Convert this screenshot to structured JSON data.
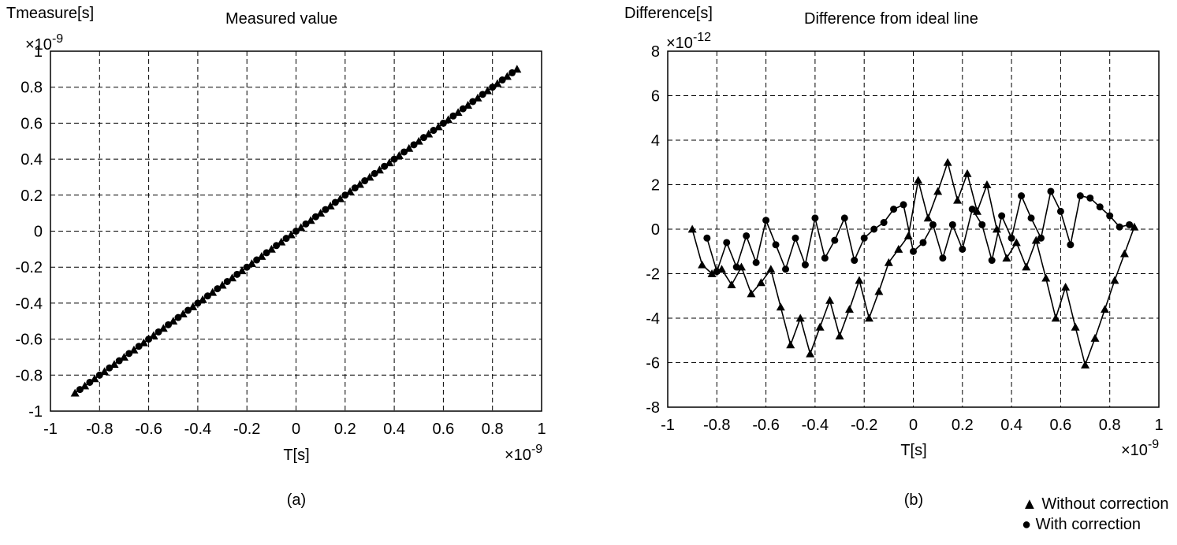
{
  "chart_data": [
    {
      "type": "line",
      "panel_label": "(a)",
      "title": "Measured value",
      "ylabel": "Tmeasure[s]",
      "xlabel": "T[s]",
      "x_scale_base": "×10",
      "x_scale_exp": "-9",
      "y_scale_base": "×10",
      "y_scale_exp": "-9",
      "xlim": [
        -1,
        1
      ],
      "ylim": [
        -1,
        1
      ],
      "xticks": [
        "-1",
        "-0.8",
        "-0.6",
        "-0.4",
        "-0.2",
        "0",
        "0.2",
        "0.4",
        "0.6",
        "0.8",
        "1"
      ],
      "yticks": [
        "1",
        "0.8",
        "0.6",
        "0.4",
        "0.2",
        "0",
        "-0.2",
        "-0.4",
        "-0.6",
        "-0.8",
        "-1"
      ],
      "grid": true,
      "series": [
        {
          "marker": "triangle",
          "x": [
            -0.9,
            -0.86,
            -0.82,
            -0.78,
            -0.74,
            -0.7,
            -0.66,
            -0.62,
            -0.58,
            -0.54,
            -0.5,
            -0.46,
            -0.42,
            -0.38,
            -0.34,
            -0.3,
            -0.26,
            -0.22,
            -0.18,
            -0.14,
            -0.1,
            -0.06,
            -0.02,
            0.02,
            0.06,
            0.1,
            0.14,
            0.18,
            0.22,
            0.26,
            0.3,
            0.34,
            0.38,
            0.42,
            0.46,
            0.5,
            0.54,
            0.58,
            0.62,
            0.66,
            0.7,
            0.74,
            0.78,
            0.82,
            0.86,
            0.9
          ],
          "y": [
            -0.9,
            -0.86,
            -0.82,
            -0.78,
            -0.74,
            -0.7,
            -0.66,
            -0.62,
            -0.58,
            -0.54,
            -0.5,
            -0.46,
            -0.42,
            -0.38,
            -0.34,
            -0.3,
            -0.26,
            -0.22,
            -0.18,
            -0.14,
            -0.1,
            -0.06,
            -0.02,
            0.02,
            0.06,
            0.1,
            0.14,
            0.18,
            0.22,
            0.26,
            0.3,
            0.34,
            0.38,
            0.42,
            0.46,
            0.5,
            0.54,
            0.58,
            0.62,
            0.66,
            0.7,
            0.74,
            0.78,
            0.82,
            0.86,
            0.9
          ]
        },
        {
          "marker": "circle",
          "x": [
            -0.88,
            -0.84,
            -0.8,
            -0.76,
            -0.72,
            -0.68,
            -0.64,
            -0.6,
            -0.56,
            -0.52,
            -0.48,
            -0.44,
            -0.4,
            -0.36,
            -0.32,
            -0.28,
            -0.24,
            -0.2,
            -0.16,
            -0.12,
            -0.08,
            -0.04,
            0.0,
            0.04,
            0.08,
            0.12,
            0.16,
            0.2,
            0.24,
            0.28,
            0.32,
            0.36,
            0.4,
            0.44,
            0.48,
            0.52,
            0.56,
            0.6,
            0.64,
            0.68,
            0.72,
            0.76,
            0.8,
            0.84,
            0.88
          ],
          "y": [
            -0.88,
            -0.84,
            -0.8,
            -0.76,
            -0.72,
            -0.68,
            -0.64,
            -0.6,
            -0.56,
            -0.52,
            -0.48,
            -0.44,
            -0.4,
            -0.36,
            -0.32,
            -0.28,
            -0.24,
            -0.2,
            -0.16,
            -0.12,
            -0.08,
            -0.04,
            0.0,
            0.04,
            0.08,
            0.12,
            0.16,
            0.2,
            0.24,
            0.28,
            0.32,
            0.36,
            0.4,
            0.44,
            0.48,
            0.52,
            0.56,
            0.6,
            0.64,
            0.68,
            0.72,
            0.76,
            0.8,
            0.84,
            0.88
          ]
        }
      ]
    },
    {
      "type": "line",
      "panel_label": "(b)",
      "title": "Difference from ideal line",
      "ylabel": "Difference[s]",
      "xlabel": "T[s]",
      "x_scale_base": "×10",
      "x_scale_exp": "-9",
      "y_scale_base": "×10",
      "y_scale_exp": "-12",
      "xlim": [
        -1,
        1
      ],
      "ylim": [
        -8,
        8
      ],
      "xticks": [
        "-1",
        "-0.8",
        "-0.6",
        "-0.4",
        "-0.2",
        "0",
        "0.2",
        "0.4",
        "0.6",
        "0.8",
        "1"
      ],
      "yticks": [
        "8",
        "6",
        "4",
        "2",
        "0",
        "-2",
        "-4",
        "-6",
        "-8"
      ],
      "grid": true,
      "series": [
        {
          "name": "Without correction",
          "marker": "triangle",
          "x": [
            -0.9,
            -0.86,
            -0.82,
            -0.78,
            -0.74,
            -0.7,
            -0.66,
            -0.62,
            -0.58,
            -0.54,
            -0.5,
            -0.46,
            -0.42,
            -0.38,
            -0.34,
            -0.3,
            -0.26,
            -0.22,
            -0.18,
            -0.14,
            -0.1,
            -0.06,
            -0.02,
            0.02,
            0.06,
            0.1,
            0.14,
            0.18,
            0.22,
            0.26,
            0.3,
            0.34,
            0.38,
            0.42,
            0.46,
            0.5,
            0.54,
            0.58,
            0.62,
            0.66,
            0.7,
            0.74,
            0.78,
            0.82,
            0.86,
            0.9
          ],
          "y": [
            0.0,
            -1.6,
            -2.0,
            -1.8,
            -2.5,
            -1.7,
            -2.9,
            -2.4,
            -1.8,
            -3.5,
            -5.2,
            -4.0,
            -5.6,
            -4.4,
            -3.2,
            -4.8,
            -3.6,
            -2.3,
            -4.0,
            -2.8,
            -1.5,
            -0.9,
            -0.3,
            2.2,
            0.5,
            1.7,
            3.0,
            1.3,
            2.5,
            0.8,
            2.0,
            0.0,
            -1.3,
            -0.6,
            -1.7,
            -0.5,
            -2.2,
            -4.0,
            -2.6,
            -4.4,
            -6.1,
            -4.9,
            -3.6,
            -2.3,
            -1.1,
            0.1
          ]
        },
        {
          "name": "With correction",
          "marker": "circle",
          "x": [
            -0.84,
            -0.8,
            -0.76,
            -0.72,
            -0.68,
            -0.64,
            -0.6,
            -0.56,
            -0.52,
            -0.48,
            -0.44,
            -0.4,
            -0.36,
            -0.32,
            -0.28,
            -0.24,
            -0.2,
            -0.16,
            -0.12,
            -0.08,
            -0.04,
            0.0,
            0.04,
            0.08,
            0.12,
            0.16,
            0.2,
            0.24,
            0.28,
            0.32,
            0.36,
            0.4,
            0.44,
            0.48,
            0.52,
            0.56,
            0.6,
            0.64,
            0.68,
            0.72,
            0.76,
            0.8,
            0.84,
            0.88
          ],
          "y": [
            -0.4,
            -1.9,
            -0.6,
            -1.7,
            -0.3,
            -1.5,
            0.4,
            -0.7,
            -1.8,
            -0.4,
            -1.6,
            0.5,
            -1.3,
            -0.5,
            0.5,
            -1.4,
            -0.4,
            0.0,
            0.3,
            0.9,
            1.1,
            -1.0,
            -0.6,
            0.2,
            -1.3,
            0.2,
            -0.9,
            0.9,
            0.2,
            -1.4,
            0.6,
            -0.4,
            1.5,
            0.5,
            -0.4,
            1.7,
            0.8,
            -0.7,
            1.5,
            1.4,
            1.0,
            0.6,
            0.1,
            0.2
          ]
        }
      ]
    }
  ],
  "legend": {
    "triangle_symbol": "▲",
    "without_label": "Without correction",
    "circle_symbol": "●",
    "with_label": "With correction"
  }
}
